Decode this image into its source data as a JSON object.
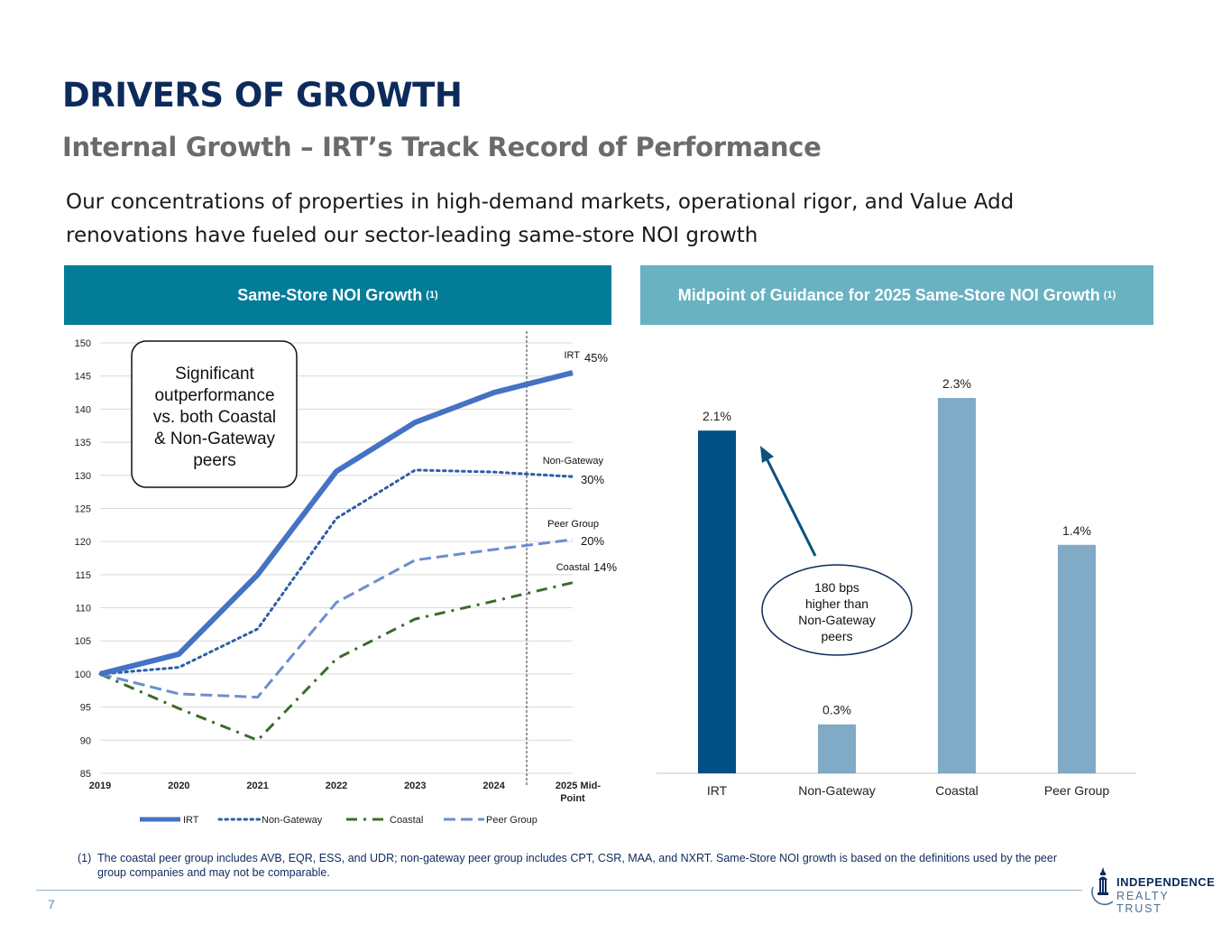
{
  "page": {
    "title": "DRIVERS OF GROWTH",
    "subtitle": "Internal Growth – IRT’s Track Record of Performance",
    "intro": "Our concentrations of properties in high-demand markets, operational rigor, and Value Add renovations have fueled our sector-leading same-store NOI growth",
    "page_number": "7"
  },
  "left_panel": {
    "header": "Same-Store NOI Growth",
    "header_note": "(1)",
    "callout_lines": [
      "Significant",
      "outperformance",
      "vs. both Coastal",
      "& Non-Gateway",
      "peers"
    ]
  },
  "right_panel": {
    "header": "Midpoint of Guidance for 2025 Same-Store NOI Growth",
    "header_note": "(1)",
    "callout_lines": [
      "180 bps",
      "higher than",
      "Non-Gateway",
      "peers"
    ]
  },
  "chart_data": [
    {
      "type": "line",
      "categories": [
        "2019",
        "2020",
        "2021",
        "2022",
        "2023",
        "2024",
        "2025 Mid-Point"
      ],
      "category_lines": [
        [
          "2019"
        ],
        [
          "2020"
        ],
        [
          "2021"
        ],
        [
          "2022"
        ],
        [
          "2023"
        ],
        [
          "2024"
        ],
        [
          "2025 Mid-",
          "Point"
        ]
      ],
      "ylim": [
        85,
        150
      ],
      "yticks": [
        85,
        90,
        95,
        100,
        105,
        110,
        115,
        120,
        125,
        130,
        135,
        140,
        145,
        150
      ],
      "grid": true,
      "legend_position": "bottom",
      "series": [
        {
          "name": "IRT",
          "values": [
            100,
            103,
            115,
            130.6,
            138,
            142.5,
            145.5
          ],
          "color": "#4472c4",
          "style": "solid",
          "end_label": "IRT",
          "end_value": "45%"
        },
        {
          "name": "Non-Gateway",
          "values": [
            100,
            101,
            106.8,
            123.5,
            130.8,
            130.5,
            129.8
          ],
          "color": "#2e5ea8",
          "style": "dotted",
          "end_label": "Non-Gateway",
          "end_value": "30%"
        },
        {
          "name": "Coastal",
          "values": [
            100,
            94.8,
            90,
            102.3,
            108.3,
            111,
            113.8
          ],
          "color": "#3d6b2a",
          "style": "dashdot",
          "end_label": "Coastal",
          "end_value": "14%"
        },
        {
          "name": "Peer Group",
          "values": [
            100,
            97,
            96.5,
            110.8,
            117.2,
            118.8,
            120.3
          ],
          "color": "#6b8fcf",
          "style": "dashed",
          "end_label": "Peer Group",
          "end_value": "20%"
        }
      ]
    },
    {
      "type": "bar",
      "categories": [
        "IRT",
        "Non-Gateway",
        "Coastal",
        "Peer Group"
      ],
      "values": [
        2.1,
        0.3,
        2.3,
        1.4
      ],
      "value_labels": [
        "2.1%",
        "0.3%",
        "2.3%",
        "1.4%"
      ],
      "colors": [
        "#024f86",
        "#80aac6",
        "#80aac6",
        "#80aac6"
      ],
      "ylim": [
        0,
        2.3
      ]
    }
  ],
  "footnote": {
    "number": "(1)",
    "text": "The coastal peer group includes AVB, EQR, ESS, and UDR; non-gateway peer group includes CPT, CSR, MAA, and NXRT. Same-Store NOI growth is based on the definitions used by the peer group companies and may not be comparable."
  },
  "logo": {
    "line1": "INDEPENDENCE",
    "line2": "REALTY TRUST"
  }
}
